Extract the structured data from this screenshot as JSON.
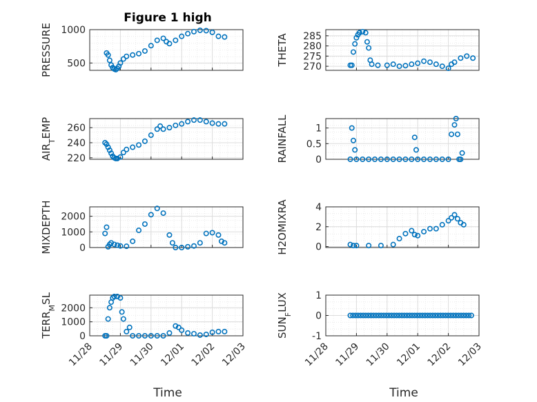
{
  "figure_title": "Figure 1 high",
  "x_axis": {
    "label": "Time",
    "domain": [
      "11/28",
      "12/03"
    ],
    "ticks": [
      "11/28",
      "11/29",
      "11/30",
      "12/01",
      "12/02",
      "12/03"
    ]
  },
  "marker_color": "#0072BD",
  "chart_data": [
    {
      "type": "scatter",
      "ylabel_main": "PRESSURE",
      "ylabel_sub": "",
      "yticks": [
        500,
        1000
      ],
      "ylim": [
        390,
        1000
      ],
      "grid": true,
      "points": [
        [
          0.55,
          650
        ],
        [
          0.6,
          620
        ],
        [
          0.65,
          540
        ],
        [
          0.7,
          470
        ],
        [
          0.75,
          430
        ],
        [
          0.8,
          410
        ],
        [
          0.85,
          400
        ],
        [
          0.9,
          420
        ],
        [
          0.95,
          450
        ],
        [
          1.0,
          500
        ],
        [
          1.1,
          560
        ],
        [
          1.2,
          600
        ],
        [
          1.4,
          620
        ],
        [
          1.6,
          640
        ],
        [
          1.8,
          680
        ],
        [
          2.0,
          760
        ],
        [
          2.2,
          840
        ],
        [
          2.4,
          870
        ],
        [
          2.5,
          820
        ],
        [
          2.6,
          790
        ],
        [
          2.8,
          840
        ],
        [
          3.0,
          900
        ],
        [
          3.2,
          940
        ],
        [
          3.4,
          970
        ],
        [
          3.6,
          990
        ],
        [
          3.8,
          985
        ],
        [
          4.0,
          960
        ],
        [
          4.2,
          900
        ],
        [
          4.4,
          890
        ]
      ]
    },
    {
      "type": "scatter",
      "ylabel_main": "THETA",
      "ylabel_sub": "",
      "yticks": [
        270,
        275,
        280,
        285
      ],
      "ylim": [
        268,
        288
      ],
      "grid": true,
      "points": [
        [
          0.8,
          270.5
        ],
        [
          0.85,
          270.5
        ],
        [
          0.9,
          277
        ],
        [
          0.95,
          281
        ],
        [
          1.0,
          284
        ],
        [
          1.05,
          285.5
        ],
        [
          1.1,
          286.5
        ],
        [
          1.2,
          287
        ],
        [
          1.3,
          286.5
        ],
        [
          1.35,
          282
        ],
        [
          1.4,
          279
        ],
        [
          1.45,
          273
        ],
        [
          1.5,
          271
        ],
        [
          1.7,
          270.5
        ],
        [
          2.0,
          270.5
        ],
        [
          2.2,
          271
        ],
        [
          2.4,
          270
        ],
        [
          2.6,
          270.3
        ],
        [
          2.8,
          271
        ],
        [
          3.0,
          271.5
        ],
        [
          3.2,
          272.5
        ],
        [
          3.4,
          272
        ],
        [
          3.6,
          271
        ],
        [
          3.8,
          270
        ],
        [
          4.0,
          269
        ],
        [
          4.1,
          271
        ],
        [
          4.2,
          272
        ],
        [
          4.4,
          274
        ],
        [
          4.6,
          275
        ],
        [
          4.8,
          274
        ]
      ]
    },
    {
      "type": "scatter",
      "ylabel_main": "AIR",
      "ylabel_sub": "T",
      "ylabel_after": "EMP",
      "yticks": [
        220,
        240,
        260
      ],
      "ylim": [
        218,
        272
      ],
      "grid": true,
      "points": [
        [
          0.5,
          240
        ],
        [
          0.55,
          238
        ],
        [
          0.6,
          234
        ],
        [
          0.65,
          230
        ],
        [
          0.7,
          226
        ],
        [
          0.75,
          222
        ],
        [
          0.8,
          220
        ],
        [
          0.85,
          219
        ],
        [
          0.9,
          219
        ],
        [
          1.0,
          221
        ],
        [
          1.1,
          227
        ],
        [
          1.2,
          231
        ],
        [
          1.4,
          234
        ],
        [
          1.6,
          237
        ],
        [
          1.8,
          242
        ],
        [
          2.0,
          250
        ],
        [
          2.2,
          258
        ],
        [
          2.3,
          262
        ],
        [
          2.4,
          258
        ],
        [
          2.6,
          260
        ],
        [
          2.8,
          263
        ],
        [
          3.0,
          265
        ],
        [
          3.2,
          268
        ],
        [
          3.4,
          270
        ],
        [
          3.6,
          270
        ],
        [
          3.8,
          268
        ],
        [
          4.0,
          266
        ],
        [
          4.2,
          265
        ],
        [
          4.4,
          265
        ]
      ]
    },
    {
      "type": "scatter",
      "ylabel_main": "RAINFALL",
      "ylabel_sub": "",
      "yticks": [
        0,
        0.5,
        1
      ],
      "ylim": [
        0,
        1.3
      ],
      "grid": true,
      "points": [
        [
          0.8,
          0
        ],
        [
          0.85,
          1.0
        ],
        [
          0.9,
          0.6
        ],
        [
          0.95,
          0.3
        ],
        [
          1.0,
          0
        ],
        [
          1.2,
          0
        ],
        [
          1.4,
          0
        ],
        [
          1.6,
          0
        ],
        [
          1.8,
          0
        ],
        [
          2.0,
          0
        ],
        [
          2.2,
          0
        ],
        [
          2.4,
          0
        ],
        [
          2.6,
          0
        ],
        [
          2.8,
          0
        ],
        [
          2.9,
          0.7
        ],
        [
          2.95,
          0.3
        ],
        [
          3.0,
          0
        ],
        [
          3.2,
          0
        ],
        [
          3.4,
          0
        ],
        [
          3.6,
          0
        ],
        [
          3.8,
          0
        ],
        [
          4.0,
          0
        ],
        [
          4.1,
          0.8
        ],
        [
          4.2,
          1.1
        ],
        [
          4.25,
          1.3
        ],
        [
          4.3,
          0.8
        ],
        [
          4.35,
          0
        ],
        [
          4.4,
          0
        ],
        [
          4.45,
          0.2
        ]
      ]
    },
    {
      "type": "scatter",
      "ylabel_main": "MIXDEPTH",
      "ylabel_sub": "",
      "yticks": [
        0,
        1000,
        2000
      ],
      "ylim": [
        0,
        2600
      ],
      "grid": true,
      "points": [
        [
          0.5,
          900
        ],
        [
          0.55,
          1300
        ],
        [
          0.6,
          50
        ],
        [
          0.65,
          200
        ],
        [
          0.7,
          300
        ],
        [
          0.8,
          200
        ],
        [
          0.9,
          150
        ],
        [
          1.0,
          100
        ],
        [
          1.2,
          80
        ],
        [
          1.4,
          400
        ],
        [
          1.6,
          1100
        ],
        [
          1.8,
          1500
        ],
        [
          2.0,
          2100
        ],
        [
          2.2,
          2500
        ],
        [
          2.4,
          2200
        ],
        [
          2.6,
          800
        ],
        [
          2.7,
          300
        ],
        [
          2.8,
          0
        ],
        [
          3.0,
          0
        ],
        [
          3.2,
          50
        ],
        [
          3.4,
          100
        ],
        [
          3.6,
          300
        ],
        [
          3.8,
          900
        ],
        [
          4.0,
          950
        ],
        [
          4.2,
          800
        ],
        [
          4.3,
          400
        ],
        [
          4.4,
          300
        ]
      ]
    },
    {
      "type": "scatter",
      "ylabel_main": "H2OMIXRA",
      "ylabel_sub": "",
      "yticks": [
        0,
        2,
        4
      ],
      "ylim": [
        -0.1,
        4
      ],
      "grid": true,
      "points": [
        [
          0.8,
          0.2
        ],
        [
          0.9,
          0.1
        ],
        [
          1.0,
          0.1
        ],
        [
          1.4,
          0.1
        ],
        [
          1.8,
          0.1
        ],
        [
          2.2,
          0.2
        ],
        [
          2.4,
          0.8
        ],
        [
          2.6,
          1.3
        ],
        [
          2.8,
          1.6
        ],
        [
          2.9,
          1.2
        ],
        [
          3.0,
          1.1
        ],
        [
          3.2,
          1.5
        ],
        [
          3.4,
          1.8
        ],
        [
          3.6,
          1.8
        ],
        [
          3.8,
          2.2
        ],
        [
          4.0,
          2.6
        ],
        [
          4.1,
          2.9
        ],
        [
          4.2,
          3.2
        ],
        [
          4.3,
          2.8
        ],
        [
          4.4,
          2.4
        ],
        [
          4.5,
          2.2
        ]
      ]
    },
    {
      "type": "scatter",
      "ylabel_main": "TERR",
      "ylabel_sub": "M",
      "ylabel_after": "SL",
      "yticks": [
        0,
        1000,
        2000
      ],
      "ylim": [
        0,
        2900
      ],
      "grid": true,
      "points": [
        [
          0.5,
          0
        ],
        [
          0.55,
          0
        ],
        [
          0.6,
          1200
        ],
        [
          0.65,
          2000
        ],
        [
          0.7,
          2400
        ],
        [
          0.75,
          2700
        ],
        [
          0.8,
          2800
        ],
        [
          0.9,
          2800
        ],
        [
          1.0,
          2700
        ],
        [
          1.05,
          1700
        ],
        [
          1.1,
          1200
        ],
        [
          1.2,
          300
        ],
        [
          1.3,
          600
        ],
        [
          1.4,
          0
        ],
        [
          1.6,
          0
        ],
        [
          1.8,
          0
        ],
        [
          2.0,
          0
        ],
        [
          2.2,
          0
        ],
        [
          2.4,
          0
        ],
        [
          2.6,
          200
        ],
        [
          2.8,
          700
        ],
        [
          2.9,
          600
        ],
        [
          3.0,
          400
        ],
        [
          3.2,
          200
        ],
        [
          3.4,
          150
        ],
        [
          3.6,
          50
        ],
        [
          3.8,
          100
        ],
        [
          4.0,
          250
        ],
        [
          4.2,
          300
        ],
        [
          4.4,
          300
        ]
      ]
    },
    {
      "type": "scatter",
      "ylabel_main": "SUN",
      "ylabel_sub": "F",
      "ylabel_after": "LUX",
      "yticks": [
        -1,
        0,
        1
      ],
      "ylim": [
        -1,
        1
      ],
      "grid": true,
      "points_series": {
        "x_start": 0.8,
        "x_end": 4.75,
        "count": 48,
        "y": 0
      }
    }
  ]
}
